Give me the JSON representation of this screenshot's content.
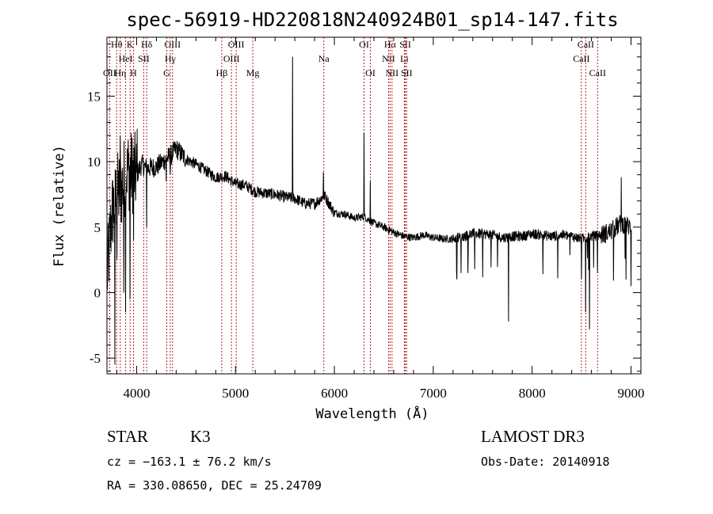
{
  "chart_data": {
    "type": "line",
    "title": "spec-56919-HD220818N240924B01_sp14-147.fits",
    "xlabel": "Wavelength (Å)",
    "ylabel": "Flux (relative)",
    "xlim": [
      3700,
      9100
    ],
    "ylim": [
      -6.2,
      19.5
    ],
    "xticks": [
      4000,
      5000,
      6000,
      7000,
      8000,
      9000
    ],
    "yticks": [
      -5,
      0,
      5,
      10,
      15
    ],
    "grid": false,
    "series": [
      {
        "name": "spectrum",
        "anchors": [
          [
            3700,
            1.0
          ],
          [
            3720,
            3.0
          ],
          [
            3750,
            6.0
          ],
          [
            3800,
            7.5
          ],
          [
            3850,
            8.0
          ],
          [
            3900,
            9.5
          ],
          [
            3950,
            9.2
          ],
          [
            4000,
            9.0
          ],
          [
            4050,
            9.8
          ],
          [
            4100,
            9.5
          ],
          [
            4200,
            9.6
          ],
          [
            4300,
            10.2
          ],
          [
            4350,
            10.5
          ],
          [
            4400,
            11.0
          ],
          [
            4500,
            10.2
          ],
          [
            4600,
            9.8
          ],
          [
            4700,
            9.3
          ],
          [
            4800,
            8.8
          ],
          [
            4900,
            8.9
          ],
          [
            5000,
            8.3
          ],
          [
            5100,
            8.2
          ],
          [
            5200,
            7.7
          ],
          [
            5300,
            7.6
          ],
          [
            5400,
            7.5
          ],
          [
            5500,
            7.3
          ],
          [
            5600,
            7.2
          ],
          [
            5700,
            6.8
          ],
          [
            5800,
            6.8
          ],
          [
            5900,
            7.4
          ],
          [
            6000,
            6.1
          ],
          [
            6100,
            6.0
          ],
          [
            6200,
            5.7
          ],
          [
            6300,
            5.8
          ],
          [
            6400,
            5.3
          ],
          [
            6500,
            5.0
          ],
          [
            6600,
            4.6
          ],
          [
            6700,
            4.3
          ],
          [
            6800,
            4.2
          ],
          [
            6900,
            4.4
          ],
          [
            7000,
            4.2
          ],
          [
            7100,
            4.1
          ],
          [
            7200,
            4.1
          ],
          [
            7300,
            4.3
          ],
          [
            7400,
            4.5
          ],
          [
            7500,
            4.5
          ],
          [
            7600,
            4.4
          ],
          [
            7700,
            4.2
          ],
          [
            7800,
            4.3
          ],
          [
            7900,
            4.3
          ],
          [
            8000,
            4.5
          ],
          [
            8100,
            4.4
          ],
          [
            8200,
            4.3
          ],
          [
            8300,
            4.4
          ],
          [
            8400,
            4.3
          ],
          [
            8500,
            4.1
          ],
          [
            8600,
            4.3
          ],
          [
            8700,
            4.4
          ],
          [
            8800,
            4.7
          ],
          [
            8900,
            5.3
          ],
          [
            9000,
            5.0
          ]
        ],
        "features": [
          [
            3780,
            -5.5
          ],
          [
            3800,
            2.5
          ],
          [
            3835,
            12.0
          ],
          [
            3870,
            0.0
          ],
          [
            3889,
            -1.5
          ],
          [
            3905,
            11.0
          ],
          [
            3933,
            -0.5
          ],
          [
            3968,
            4.0
          ],
          [
            4005,
            12.5
          ],
          [
            4102,
            5.0
          ],
          [
            4300,
            8.5
          ],
          [
            4340,
            9.0
          ],
          [
            5577,
            18.0
          ],
          [
            5890,
            9.2
          ],
          [
            6300,
            12.2
          ],
          [
            6364,
            8.5
          ],
          [
            7240,
            1.0
          ],
          [
            7280,
            1.5
          ],
          [
            7350,
            1.5
          ],
          [
            7420,
            1.8
          ],
          [
            7760,
            -2.2
          ],
          [
            8500,
            1.0
          ],
          [
            8542,
            -1.5
          ],
          [
            8580,
            -2.8
          ],
          [
            8662,
            1.5
          ],
          [
            8900,
            8.8
          ],
          [
            8950,
            1.0
          ],
          [
            9000,
            0.5
          ]
        ]
      }
    ],
    "line_markers": [
      {
        "label": "OII",
        "wavelength": 3727,
        "row": 2
      },
      {
        "label": "Hθ",
        "wavelength": 3798,
        "row": 0
      },
      {
        "label": "Hη",
        "wavelength": 3835,
        "row": 2
      },
      {
        "label": "HeI",
        "wavelength": 3889,
        "row": 1
      },
      {
        "label": "K",
        "wavelength": 3934,
        "row": 0
      },
      {
        "label": "H",
        "wavelength": 3968,
        "row": 2
      },
      {
        "label": "SII",
        "wavelength": 4072,
        "row": 1
      },
      {
        "label": "Hδ",
        "wavelength": 4102,
        "row": 0
      },
      {
        "label": "G",
        "wavelength": 4305,
        "row": 2
      },
      {
        "label": "Hγ",
        "wavelength": 4340,
        "row": 1
      },
      {
        "label": "OIII",
        "wavelength": 4363,
        "row": 0
      },
      {
        "label": "Hβ",
        "wavelength": 4861,
        "row": 2
      },
      {
        "label": "OIII",
        "wavelength": 4959,
        "row": 1
      },
      {
        "label": "OIII",
        "wavelength": 5007,
        "row": 0
      },
      {
        "label": "Mg",
        "wavelength": 5175,
        "row": 2
      },
      {
        "label": "Na",
        "wavelength": 5893,
        "row": 1
      },
      {
        "label": "OI",
        "wavelength": 6300,
        "row": 0
      },
      {
        "label": "OI",
        "wavelength": 6364,
        "row": 2
      },
      {
        "label": "NII",
        "wavelength": 6548,
        "row": 1
      },
      {
        "label": "Hα",
        "wavelength": 6563,
        "row": 0
      },
      {
        "label": "NII",
        "wavelength": 6583,
        "row": 2
      },
      {
        "label": "SII",
        "wavelength": 6717,
        "row": 0
      },
      {
        "label": "Li",
        "wavelength": 6708,
        "row": 1
      },
      {
        "label": "SII",
        "wavelength": 6731,
        "row": 2
      },
      {
        "label": "CaII",
        "wavelength": 8498,
        "row": 1
      },
      {
        "label": "CaII",
        "wavelength": 8542,
        "row": 0
      },
      {
        "label": "CaII",
        "wavelength": 8662,
        "row": 2
      }
    ],
    "colors": {
      "spectrum": "#000000",
      "line_markers": "#b22222",
      "axes": "#000000"
    }
  },
  "info": {
    "class": "STAR",
    "subclass": "K3",
    "survey": "LAMOST DR3",
    "cz": "cz = −163.1 ± 76.2 km/s",
    "obs_date": "Obs-Date: 20140918",
    "coords": "RA = 330.08650, DEC =  25.24709"
  }
}
